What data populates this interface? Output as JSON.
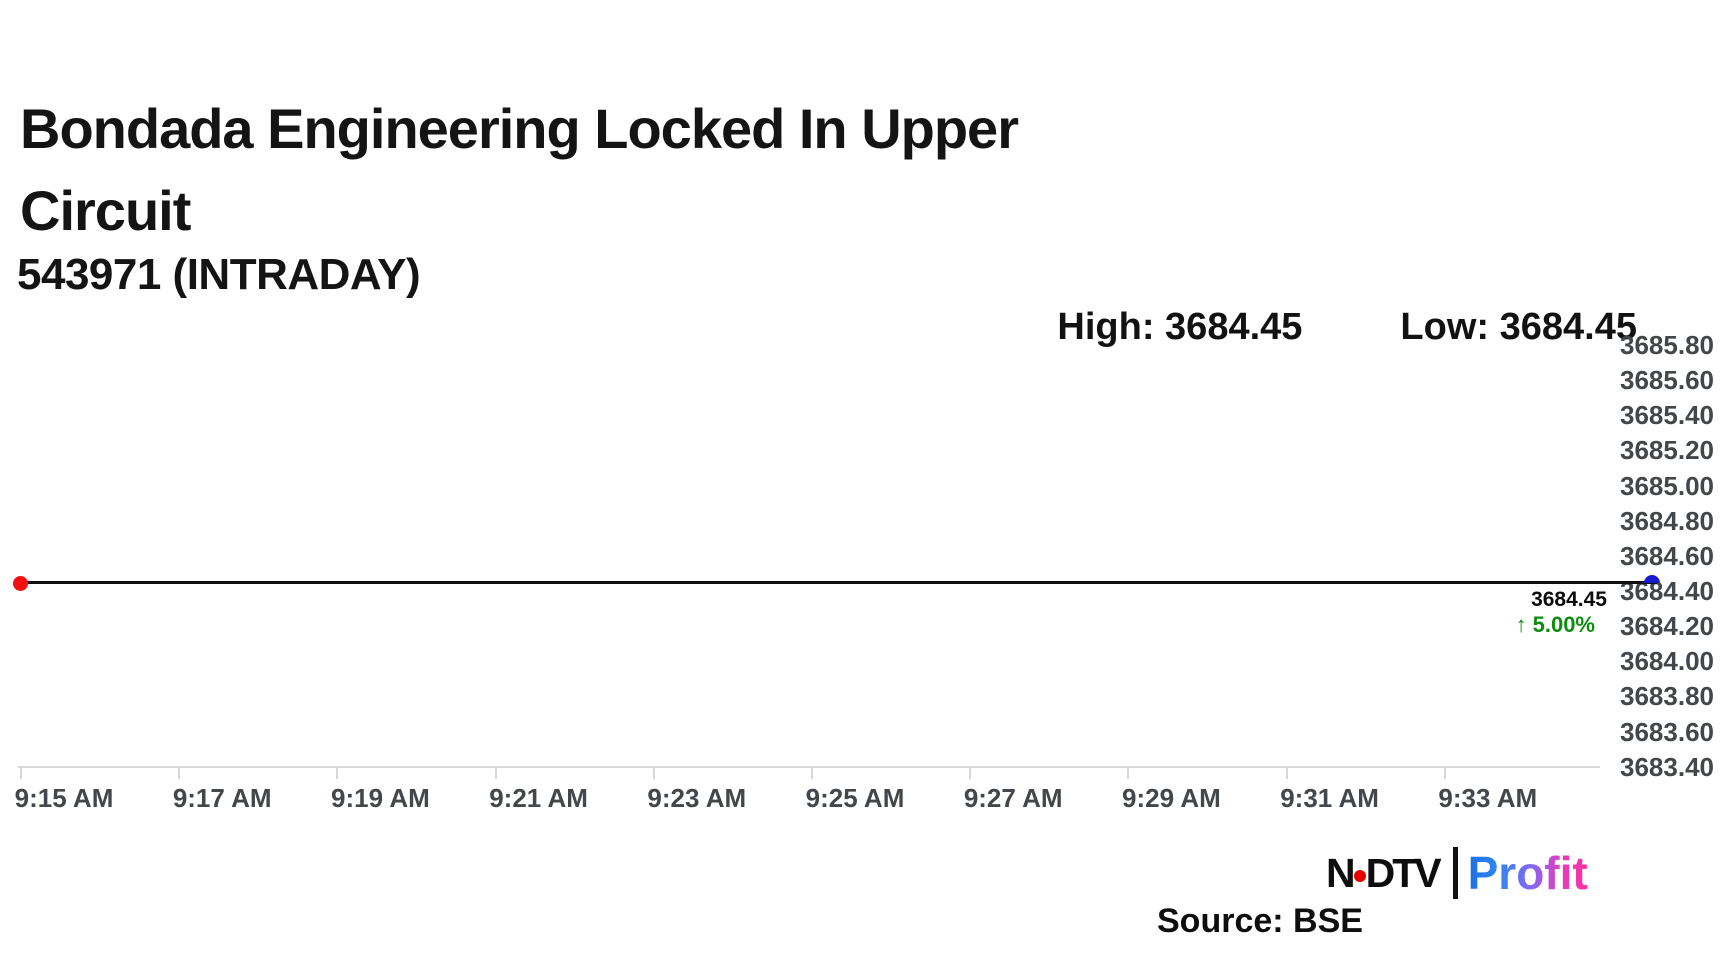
{
  "header": {
    "title_line1": "Bondada Engineering Locked In Upper",
    "title_line2": "Circuit",
    "subtitle": "543971 (INTRADAY)"
  },
  "stats": {
    "high_label": "High:",
    "high_value": "3684.45",
    "low_label": "Low:",
    "low_value": "3684.45"
  },
  "price_callout": {
    "price": "3684.45",
    "arrow": "↑",
    "change_percent": "5.00%"
  },
  "chart_data": {
    "type": "line",
    "title": "Bondada Engineering Locked In Upper Circuit",
    "instrument": "543971 (INTRADAY)",
    "high": 3684.45,
    "low": 3684.45,
    "last_price": 3684.45,
    "change_percent": 5.0,
    "series": [
      {
        "name": "543971",
        "x": [
          "9:15 AM",
          "9:34 AM"
        ],
        "values": [
          3684.45,
          3684.45
        ]
      }
    ],
    "x_ticks": [
      "9:15 AM",
      "9:17 AM",
      "9:19 AM",
      "9:21 AM",
      "9:23 AM",
      "9:25 AM",
      "9:27 AM",
      "9:29 AM",
      "9:31 AM",
      "9:33 AM"
    ],
    "y_ticks": [
      "3685.80",
      "3685.60",
      "3685.40",
      "3685.20",
      "3685.00",
      "3684.80",
      "3684.60",
      "3684.40",
      "3684.20",
      "3684.00",
      "3683.80",
      "3683.60",
      "3683.40"
    ],
    "ylim": [
      3683.4,
      3685.8
    ],
    "grid": false,
    "legend": "none",
    "line_color": "#101010",
    "start_marker_color": "#f21111",
    "end_marker_color": "#1a1ad1",
    "change_color": "#0e8c0e"
  },
  "footer": {
    "brand_n": "N",
    "brand_dtv": "DTV",
    "brand_profit": "Profit",
    "source": "Source: BSE"
  }
}
